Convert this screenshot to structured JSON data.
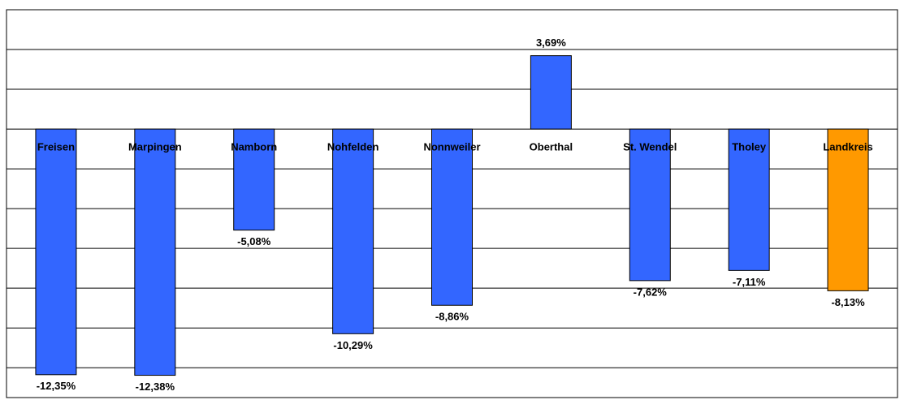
{
  "chart_data": {
    "type": "bar",
    "categories": [
      "Freisen",
      "Marpingen",
      "Namborn",
      "Nohfelden",
      "Nonnweiler",
      "Oberthal",
      "St. Wendel",
      "Tholey",
      "Landkreis"
    ],
    "values": [
      -12.35,
      -12.38,
      -5.08,
      -10.29,
      -8.86,
      3.69,
      -7.62,
      -7.11,
      -8.13
    ],
    "value_labels": [
      "-12,35%",
      "-12,38%",
      "-5,08%",
      "-10,29%",
      "-8,86%",
      "3,69%",
      "-7,62%",
      "-7,11%",
      "-8,13%"
    ],
    "colors": [
      "#3366ff",
      "#3366ff",
      "#3366ff",
      "#3366ff",
      "#3366ff",
      "#3366ff",
      "#3366ff",
      "#3366ff",
      "#ff9900"
    ],
    "ylim": [
      -13.5,
      6
    ],
    "yticks": [
      -12,
      -10,
      -8,
      -6,
      -4,
      -2,
      0,
      2,
      4,
      6
    ],
    "grid": true
  }
}
